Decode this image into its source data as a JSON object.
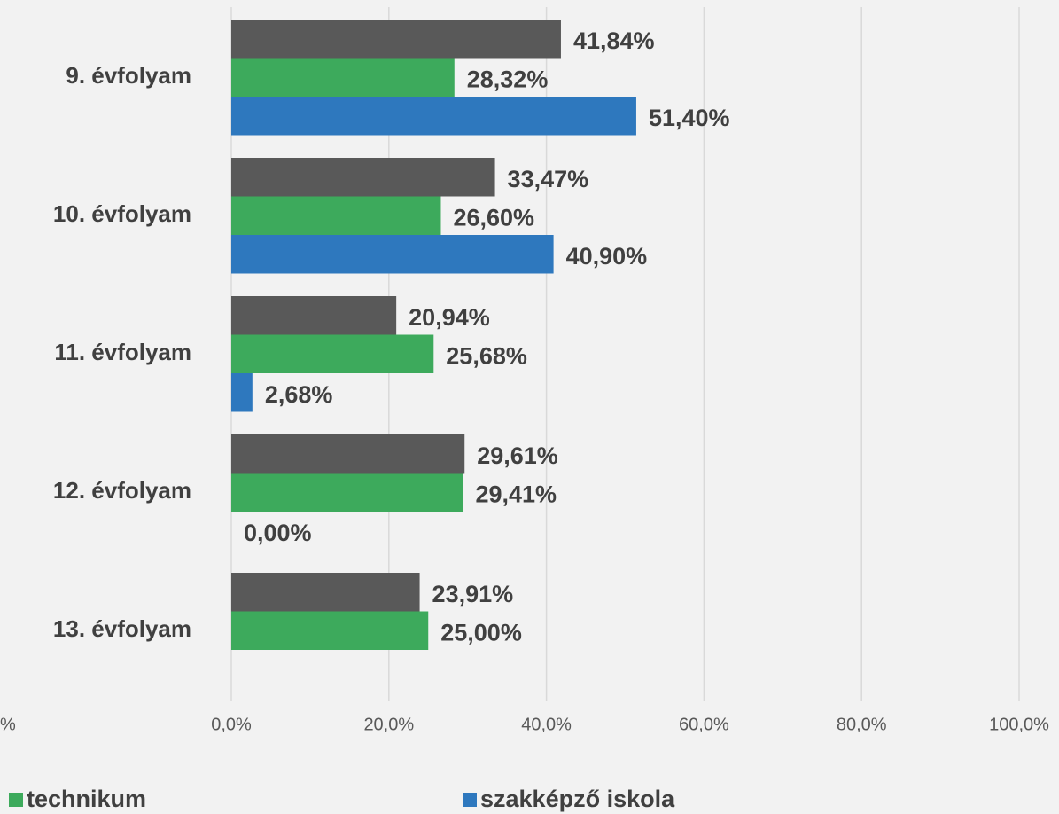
{
  "chart_data": {
    "type": "hbar",
    "categories": [
      "9. évfolyam",
      "10. évfolyam",
      "11. évfolyam",
      "12. évfolyam",
      "13. évfolyam"
    ],
    "series": [
      {
        "color": "#595959",
        "values": [
          41.84,
          33.47,
          20.94,
          29.61,
          23.91
        ],
        "value_labels": [
          "41,84%",
          "33,47%",
          "20,94%",
          "29,61%",
          "23,91%"
        ]
      },
      {
        "name": "technikum",
        "color": "#3daa5c",
        "values": [
          28.32,
          26.6,
          25.68,
          29.41,
          25.0
        ],
        "value_labels": [
          "28,32%",
          "26,60%",
          "25,68%",
          "29,41%",
          "25,00%"
        ]
      },
      {
        "name": "szakképző iskola",
        "color": "#2e78be",
        "values": [
          51.4,
          40.9,
          2.68,
          0.0,
          null
        ],
        "value_labels": [
          "51,40%",
          "40,90%",
          "2,68%",
          "0,00%",
          null
        ]
      }
    ],
    "xlim": [
      0,
      100
    ],
    "xticks": [
      {
        "value": 0,
        "label": "0,0%"
      },
      {
        "value": 20,
        "label": "20,0%"
      },
      {
        "value": 40,
        "label": "40,0%"
      },
      {
        "value": 60,
        "label": "60,0%"
      },
      {
        "value": 80,
        "label": "80,0%"
      },
      {
        "value": 100,
        "label": "100,0%"
      }
    ],
    "annotations": [
      "%"
    ],
    "grid": true
  }
}
